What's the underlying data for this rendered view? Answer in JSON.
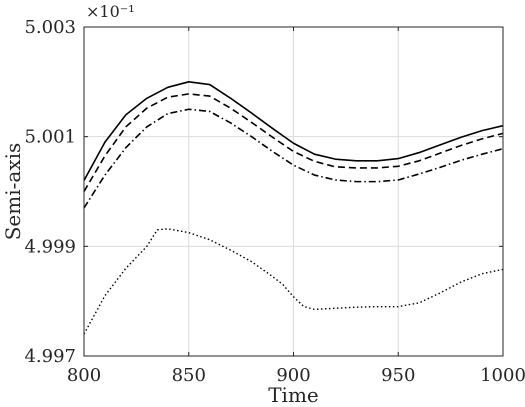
{
  "chart_data": {
    "type": "line",
    "title": "",
    "xlabel": "Time",
    "ylabel": "Semi-axis",
    "xlim": [
      800,
      1000
    ],
    "ylim": [
      0.4997,
      0.5003
    ],
    "x_ticks": [
      800,
      850,
      900,
      950,
      1000
    ],
    "x_tick_labels": [
      "800",
      "850",
      "900",
      "950",
      "1000"
    ],
    "y_ticks": [
      0.4997,
      0.4999,
      0.5001,
      0.5003
    ],
    "y_tick_labels": [
      "4.997",
      "4.999",
      "5.001",
      "5.003"
    ],
    "y_multiplier": "×10⁻¹",
    "grid": true,
    "legend": "none",
    "series": [
      {
        "style": "solid",
        "color": "#000000",
        "x": [
          800,
          810,
          820,
          830,
          840,
          850,
          860,
          870,
          880,
          890,
          900,
          910,
          920,
          930,
          940,
          950,
          960,
          970,
          980,
          990,
          1000
        ],
        "y": [
          0.50002,
          0.50009,
          0.50014,
          0.50017,
          0.50019,
          0.5002,
          0.500195,
          0.50017,
          0.500143,
          0.500115,
          0.500088,
          0.500068,
          0.500059,
          0.500056,
          0.500056,
          0.50006,
          0.500071,
          0.500085,
          0.500099,
          0.500111,
          0.50012
        ]
      },
      {
        "style": "dashed",
        "color": "#000000",
        "x": [
          800,
          810,
          820,
          830,
          840,
          850,
          860,
          870,
          880,
          890,
          900,
          910,
          920,
          930,
          940,
          950,
          960,
          970,
          980,
          990,
          1000
        ],
        "y": [
          0.5,
          0.500065,
          0.500118,
          0.500152,
          0.500172,
          0.500178,
          0.500174,
          0.500152,
          0.500126,
          0.500099,
          0.500073,
          0.500055,
          0.500045,
          0.500043,
          0.500043,
          0.500046,
          0.500056,
          0.50007,
          0.500084,
          0.500096,
          0.500106
        ]
      },
      {
        "style": "dashdot",
        "color": "#000000",
        "x": [
          800,
          810,
          820,
          830,
          840,
          850,
          860,
          870,
          880,
          890,
          900,
          910,
          920,
          930,
          940,
          950,
          960,
          970,
          980,
          990,
          1000
        ],
        "y": [
          0.49997,
          0.50003,
          0.50008,
          0.500118,
          0.500142,
          0.50015,
          0.500146,
          0.500125,
          0.5001,
          0.500073,
          0.500048,
          0.50003,
          0.500021,
          0.500018,
          0.500018,
          0.500021,
          0.500032,
          0.500044,
          0.500057,
          0.500068,
          0.500078
        ]
      },
      {
        "style": "dotted",
        "color": "#000000",
        "x": [
          800,
          810,
          820,
          825,
          830,
          835,
          840,
          850,
          860,
          870,
          880,
          890,
          895,
          900,
          905,
          910,
          920,
          930,
          940,
          950,
          960,
          970,
          980,
          990,
          1000
        ],
        "y": [
          0.49974,
          0.49981,
          0.49986,
          0.49988,
          0.4999,
          0.49993,
          0.499932,
          0.499925,
          0.499912,
          0.499893,
          0.499872,
          0.499845,
          0.49983,
          0.499808,
          0.49979,
          0.499785,
          0.499787,
          0.499789,
          0.49979,
          0.49979,
          0.499797,
          0.499815,
          0.499835,
          0.49985,
          0.499858
        ]
      }
    ]
  }
}
